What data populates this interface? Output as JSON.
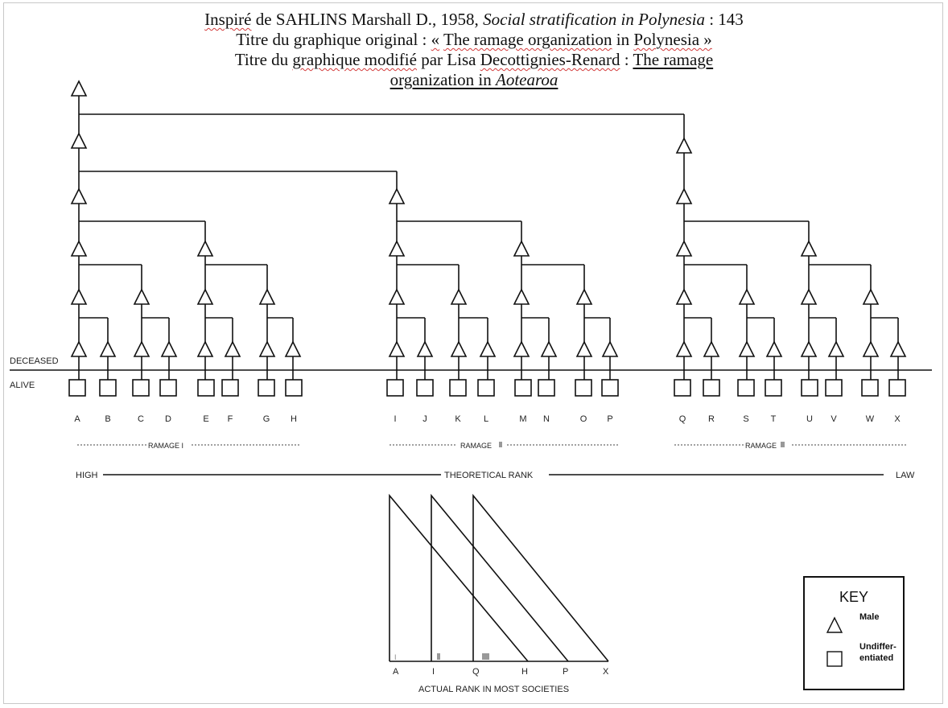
{
  "header": {
    "line1_a": "Inspiré",
    "line1_b": " de SAHLINS Marshall D., 1958, ",
    "line1_italic": "Social stratification in Polynesia",
    "line1_c": " : 143",
    "line2_a": "Titre du graphique original : ",
    "line2_b": "«",
    "line2_c": " ",
    "line2_d": "The ramage organization",
    "line2_e": " in ",
    "line2_f": "Polynesia »",
    "line3_a": "Titre du ",
    "line3_b": "graphique modifié",
    "line3_c": " par Lisa ",
    "line3_d": "Decottignies-Renard",
    "line3_e": " : ",
    "line3_f": "The ramage",
    "line4_a": "organization in ",
    "line4_italic": "Aotearoa"
  },
  "state_labels": {
    "deceased": "DECEASED",
    "alive": "ALIVE"
  },
  "descendants": [
    "A",
    "B",
    "C",
    "D",
    "E",
    "F",
    "G",
    "H",
    "I",
    "J",
    "K",
    "L",
    "M",
    "N",
    "O",
    "P",
    "Q",
    "R",
    "S",
    "T",
    "U",
    "V",
    "W",
    "X"
  ],
  "ramages": [
    {
      "label": "RAMAGE I"
    },
    {
      "label": "RAMAGE"
    },
    {
      "label": "RAMAGE"
    }
  ],
  "rank_axis": {
    "high": "HIGH",
    "center": "THEORETICAL RANK",
    "low": "LAW"
  },
  "actual_rank": {
    "title": "ACTUAL RANK IN MOST SOCIETIES",
    "bottom_labels": [
      "A",
      "I",
      "Q",
      "H",
      "P",
      "X"
    ],
    "marker_labels": [
      "I",
      "II",
      "III"
    ]
  },
  "key": {
    "title": "KEY",
    "male": "Male",
    "undiff_1": "Undiffer-",
    "undiff_2": "entiated"
  },
  "colors": {
    "line": "#111111",
    "wavy_underline": "#d23a3a",
    "frame": "#c8c8c8"
  }
}
